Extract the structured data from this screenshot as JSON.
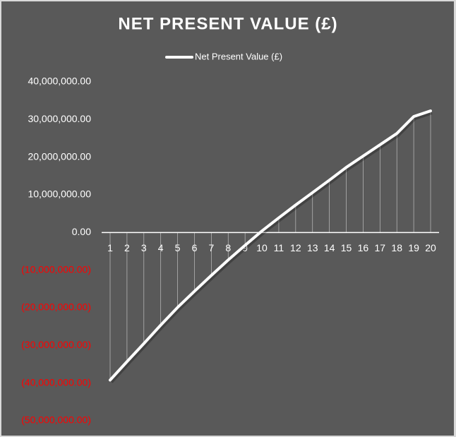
{
  "chart_data": {
    "type": "line",
    "title": "NET PRESENT VALUE (£)",
    "categories": [
      "1",
      "2",
      "3",
      "4",
      "5",
      "6",
      "7",
      "8",
      "9",
      "10",
      "11",
      "12",
      "13",
      "14",
      "15",
      "16",
      "17",
      "18",
      "19",
      "20"
    ],
    "series": [
      {
        "name": "Net Present Value (£)",
        "color": "#ffffff",
        "values": [
          -39200000,
          -34300000,
          -29500000,
          -24600000,
          -19900000,
          -15600000,
          -11400000,
          -7300000,
          -3400000,
          400000,
          3900000,
          7300000,
          10600000,
          13900000,
          17300000,
          20300000,
          23300000,
          26300000,
          30800000,
          32300000
        ]
      }
    ],
    "ylim": [
      -50000000,
      40000000
    ],
    "yticks": [
      {
        "value": -50000000,
        "label": "(50,000,000.00)"
      },
      {
        "value": -40000000,
        "label": "(40,000,000.00)"
      },
      {
        "value": -30000000,
        "label": "(30,000,000.00)"
      },
      {
        "value": -20000000,
        "label": "(20,000,000.00)"
      },
      {
        "value": -10000000,
        "label": "(10,000,000.00)"
      },
      {
        "value": 0,
        "label": "0.00"
      },
      {
        "value": 10000000,
        "label": "10,000,000.00"
      },
      {
        "value": 20000000,
        "label": "20,000,000.00"
      },
      {
        "value": 30000000,
        "label": "30,000,000.00"
      },
      {
        "value": 40000000,
        "label": "40,000,000.00"
      }
    ],
    "negative_tick_color": "#ff0000",
    "drop_lines": true,
    "legend": "top"
  }
}
